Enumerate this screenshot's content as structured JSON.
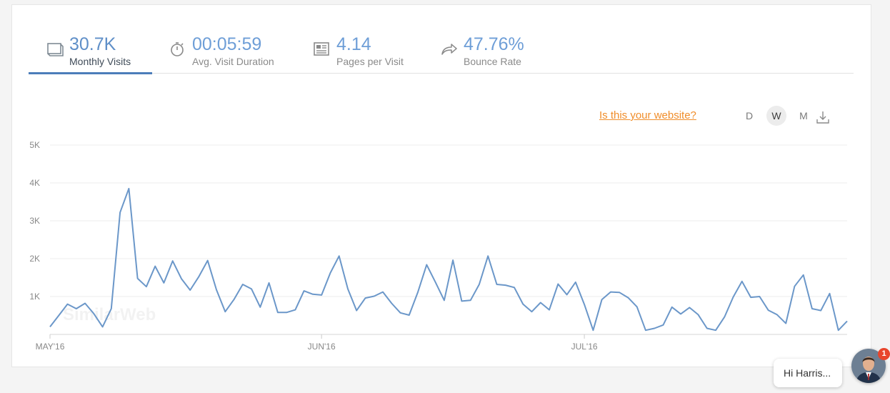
{
  "metrics": [
    {
      "value": "30.7K",
      "label": "Monthly Visits",
      "icon": "monthly-visits-icon"
    },
    {
      "value": "00:05:59",
      "label": "Avg. Visit Duration",
      "icon": "stopwatch-icon"
    },
    {
      "value": "4.14",
      "label": "Pages per Visit",
      "icon": "pages-icon"
    },
    {
      "value": "47.76%",
      "label": "Bounce Rate",
      "icon": "share-arrow-icon"
    }
  ],
  "controls": {
    "claim_link": "Is this your website?",
    "granularity": [
      "D",
      "W",
      "M"
    ],
    "selected_granularity": "W",
    "download_icon": "download-icon"
  },
  "watermark": "SimilarWeb",
  "chat": {
    "greeting": "Hi Harris...",
    "badge_count": "1"
  },
  "colors": {
    "accent": "#4c7dba",
    "line": "#6b97c9",
    "link": "#f08d2a",
    "badge": "#e8452c"
  },
  "chart_data": {
    "type": "line",
    "title": "",
    "xlabel": "",
    "ylabel": "",
    "ylim": [
      0,
      5000
    ],
    "y_ticks": [
      "5K",
      "4K",
      "3K",
      "2K",
      "1K"
    ],
    "y_tick_values": [
      5000,
      4000,
      3000,
      2000,
      1000
    ],
    "x_ticks": [
      "MAY'16",
      "JUN'16",
      "JUL'16"
    ],
    "x_tick_day_index": [
      0,
      31,
      61
    ],
    "grid": true,
    "series": [
      {
        "values": [
          200,
          500,
          800,
          680,
          820,
          550,
          200,
          680,
          3220,
          3850,
          1480,
          1260,
          1800,
          1360,
          1940,
          1470,
          1170,
          1530,
          1950,
          1180,
          600,
          920,
          1320,
          1200,
          720,
          1360,
          580,
          580,
          650,
          1150,
          1060,
          1040,
          1620,
          2070,
          1200,
          630,
          960,
          1010,
          1120,
          820,
          570,
          510,
          1120,
          1840,
          1380,
          900,
          1960,
          880,
          900,
          1320,
          2070,
          1320,
          1300,
          1240,
          800,
          600,
          840,
          650,
          1330,
          1050,
          1380,
          790,
          110,
          920,
          1120,
          1110,
          970,
          730,
          110,
          160,
          250,
          720,
          540,
          710,
          520,
          160,
          110,
          460,
          990,
          1400,
          980,
          1000,
          640,
          520,
          290,
          1270,
          1570,
          680,
          630,
          1080,
          110,
          350
        ]
      }
    ]
  }
}
